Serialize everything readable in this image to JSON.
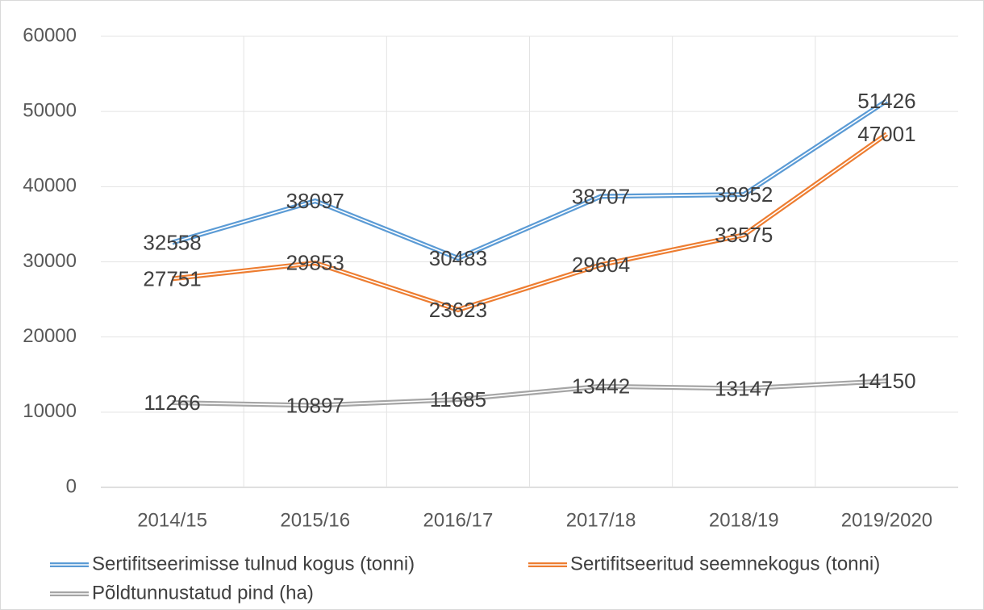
{
  "chart_data": {
    "type": "line",
    "categories": [
      "2014/15",
      "2015/16",
      "2016/17",
      "2017/18",
      "2018/19",
      "2019/2020"
    ],
    "series": [
      {
        "name": "Sertifitseerimisse tulnud kogus (tonni)",
        "color": "#5b9bd5",
        "values": [
          32558,
          38097,
          30483,
          38707,
          38952,
          51426
        ]
      },
      {
        "name": "Sertifitseeritud seemnekogus (tonni)",
        "color": "#ed7d31",
        "values": [
          27751,
          29853,
          23623,
          29604,
          33575,
          47001
        ]
      },
      {
        "name": "Põldtunnustatud pind (ha)",
        "color": "#a5a5a5",
        "values": [
          11266,
          10897,
          11685,
          13442,
          13147,
          14150
        ]
      }
    ],
    "ylim": [
      0,
      60000
    ],
    "yticks": [
      0,
      10000,
      20000,
      30000,
      40000,
      50000,
      60000
    ],
    "grid": true
  }
}
